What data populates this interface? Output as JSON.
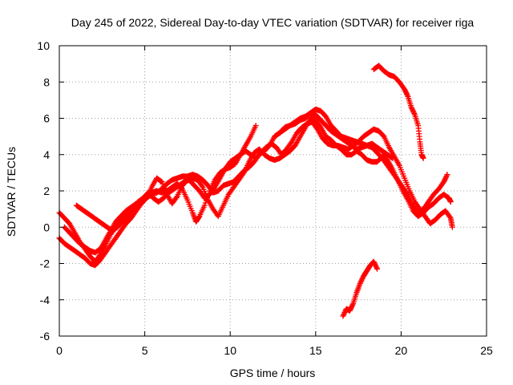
{
  "chart_data": {
    "type": "scatter",
    "title": "Day 245 of 2022, Sidereal Day-to-day VTEC variation (SDTVAR) for receiver riga",
    "xlabel": "GPS time / hours",
    "ylabel": "SDTVAR / TECUs",
    "xlim": [
      0,
      25
    ],
    "ylim": [
      -6,
      10
    ],
    "xticks": [
      "0",
      "5",
      "10",
      "15",
      "20",
      "25"
    ],
    "yticks": [
      "-6",
      "-4",
      "-2",
      "0",
      "2",
      "4",
      "6",
      "8",
      "10"
    ],
    "grid": true,
    "marker": "+",
    "color": "#ff0000",
    "series": [
      {
        "name": "track-1",
        "points": [
          [
            0.0,
            0.8
          ],
          [
            0.3,
            0.5
          ],
          [
            0.6,
            0.2
          ],
          [
            0.9,
            -0.3
          ],
          [
            1.2,
            -0.8
          ],
          [
            1.5,
            -1.2
          ],
          [
            1.8,
            -1.6
          ],
          [
            2.1,
            -1.9
          ],
          [
            2.4,
            -1.5
          ],
          [
            2.7,
            -1.0
          ],
          [
            3.0,
            -0.4
          ],
          [
            3.3,
            0.0
          ],
          [
            3.6,
            0.3
          ],
          [
            3.9,
            0.6
          ],
          [
            4.2,
            0.9
          ],
          [
            4.5,
            1.2
          ],
          [
            4.8,
            1.5
          ],
          [
            5.1,
            1.7
          ],
          [
            5.4,
            1.9
          ],
          [
            5.7,
            2.0
          ],
          [
            6.0,
            1.9
          ],
          [
            6.3,
            2.0
          ],
          [
            6.6,
            2.2
          ],
          [
            6.9,
            2.4
          ],
          [
            7.2,
            2.1
          ],
          [
            7.5,
            1.5
          ],
          [
            7.8,
            0.8
          ],
          [
            8.0,
            0.3
          ],
          [
            8.2,
            0.6
          ],
          [
            8.5,
            1.2
          ],
          [
            8.8,
            2.0
          ],
          [
            9.1,
            2.6
          ],
          [
            9.4,
            3.0
          ],
          [
            9.7,
            3.2
          ],
          [
            10.0,
            3.3
          ],
          [
            10.3,
            3.5
          ],
          [
            10.6,
            4.0
          ],
          [
            10.9,
            4.5
          ],
          [
            11.2,
            5.0
          ],
          [
            11.5,
            5.6
          ]
        ]
      },
      {
        "name": "track-2",
        "points": [
          [
            0.0,
            -0.6
          ],
          [
            0.3,
            -0.9
          ],
          [
            0.6,
            -1.1
          ],
          [
            0.9,
            -1.3
          ],
          [
            1.2,
            -1.5
          ],
          [
            1.5,
            -1.7
          ],
          [
            1.8,
            -2.0
          ],
          [
            2.1,
            -2.1
          ],
          [
            2.4,
            -1.8
          ],
          [
            2.7,
            -1.4
          ],
          [
            3.0,
            -1.0
          ],
          [
            3.3,
            -0.6
          ],
          [
            3.6,
            -0.2
          ],
          [
            3.9,
            0.2
          ],
          [
            4.2,
            0.5
          ],
          [
            4.5,
            0.9
          ],
          [
            4.8,
            1.3
          ],
          [
            5.1,
            1.6
          ],
          [
            5.4,
            1.8
          ],
          [
            5.7,
            1.9
          ],
          [
            6.0,
            2.1
          ],
          [
            6.3,
            2.4
          ],
          [
            6.6,
            2.6
          ],
          [
            6.9,
            2.7
          ],
          [
            7.2,
            2.8
          ],
          [
            7.5,
            2.8
          ],
          [
            7.8,
            2.9
          ],
          [
            8.1,
            2.8
          ],
          [
            8.4,
            2.6
          ],
          [
            8.7,
            2.3
          ],
          [
            9.0,
            1.9
          ],
          [
            9.3,
            2.0
          ],
          [
            9.6,
            2.3
          ],
          [
            9.9,
            2.4
          ],
          [
            10.2,
            2.5
          ],
          [
            10.5,
            2.8
          ],
          [
            10.8,
            3.1
          ],
          [
            11.1,
            3.3
          ],
          [
            11.4,
            3.6
          ],
          [
            11.7,
            4.0
          ],
          [
            12.0,
            4.2
          ],
          [
            12.3,
            4.5
          ],
          [
            12.6,
            5.0
          ],
          [
            12.9,
            5.2
          ],
          [
            13.2,
            5.4
          ],
          [
            13.5,
            5.6
          ],
          [
            13.8,
            5.7
          ],
          [
            14.1,
            5.9
          ],
          [
            14.4,
            6.0
          ],
          [
            14.7,
            6.3
          ],
          [
            15.0,
            6.5
          ],
          [
            15.3,
            6.4
          ],
          [
            15.6,
            6.1
          ],
          [
            15.9,
            5.6
          ],
          [
            16.2,
            5.3
          ],
          [
            16.5,
            5.0
          ],
          [
            16.8,
            4.9
          ],
          [
            17.1,
            4.8
          ],
          [
            17.4,
            4.7
          ],
          [
            17.7,
            4.6
          ],
          [
            18.0,
            4.5
          ],
          [
            18.3,
            4.4
          ],
          [
            18.6,
            4.1
          ],
          [
            18.9,
            3.8
          ],
          [
            19.2,
            3.4
          ],
          [
            19.5,
            3.0
          ],
          [
            19.8,
            2.6
          ],
          [
            20.1,
            2.0
          ],
          [
            20.4,
            1.5
          ],
          [
            20.7,
            0.9
          ],
          [
            21.0,
            0.6
          ],
          [
            21.3,
            0.8
          ],
          [
            21.6,
            1.1
          ],
          [
            21.9,
            1.3
          ],
          [
            22.2,
            1.6
          ],
          [
            22.5,
            1.8
          ],
          [
            22.8,
            1.6
          ],
          [
            22.9,
            1.4
          ]
        ]
      },
      {
        "name": "track-3",
        "points": [
          [
            0.3,
            0.0
          ],
          [
            0.6,
            -0.3
          ],
          [
            0.9,
            -0.6
          ],
          [
            1.2,
            -0.9
          ],
          [
            1.5,
            -1.1
          ],
          [
            1.8,
            -1.3
          ],
          [
            2.1,
            -1.4
          ],
          [
            2.4,
            -1.2
          ],
          [
            2.7,
            -0.7
          ],
          [
            3.0,
            -0.2
          ],
          [
            3.3,
            0.3
          ],
          [
            3.6,
            0.6
          ],
          [
            3.9,
            0.9
          ],
          [
            4.2,
            1.1
          ],
          [
            4.5,
            1.3
          ],
          [
            4.8,
            1.4
          ],
          [
            5.1,
            1.6
          ],
          [
            5.4,
            2.2
          ],
          [
            5.7,
            2.7
          ],
          [
            6.0,
            2.5
          ],
          [
            6.3,
            1.8
          ],
          [
            6.6,
            1.3
          ],
          [
            6.9,
            1.7
          ],
          [
            7.2,
            2.3
          ],
          [
            7.5,
            2.6
          ],
          [
            7.8,
            2.7
          ],
          [
            8.1,
            2.6
          ],
          [
            8.4,
            2.2
          ],
          [
            8.7,
            1.5
          ],
          [
            9.0,
            1.0
          ],
          [
            9.3,
            0.6
          ],
          [
            9.6,
            1.2
          ],
          [
            9.9,
            1.8
          ],
          [
            10.2,
            2.2
          ],
          [
            10.5,
            2.6
          ],
          [
            10.8,
            3.0
          ],
          [
            11.1,
            3.6
          ],
          [
            11.4,
            4.1
          ],
          [
            11.7,
            4.3
          ],
          [
            12.0,
            4.0
          ],
          [
            12.3,
            3.8
          ],
          [
            12.6,
            3.7
          ],
          [
            12.9,
            3.8
          ],
          [
            13.2,
            4.0
          ],
          [
            13.5,
            4.2
          ],
          [
            13.8,
            4.5
          ],
          [
            14.1,
            5.0
          ],
          [
            14.4,
            5.5
          ],
          [
            14.7,
            6.0
          ],
          [
            15.0,
            5.9
          ],
          [
            15.3,
            5.5
          ],
          [
            15.6,
            5.0
          ],
          [
            15.9,
            4.8
          ],
          [
            16.2,
            4.5
          ],
          [
            16.5,
            4.3
          ],
          [
            16.8,
            4.0
          ],
          [
            17.1,
            4.0
          ],
          [
            17.4,
            4.2
          ],
          [
            17.7,
            4.0
          ],
          [
            18.0,
            3.7
          ],
          [
            18.3,
            3.6
          ],
          [
            18.6,
            3.6
          ],
          [
            18.9,
            3.9
          ],
          [
            19.2,
            3.7
          ],
          [
            19.5,
            3.2
          ],
          [
            19.8,
            2.6
          ],
          [
            20.1,
            2.2
          ],
          [
            20.4,
            1.8
          ],
          [
            20.7,
            1.2
          ],
          [
            21.0,
            0.8
          ],
          [
            21.3,
            1.0
          ],
          [
            21.6,
            1.4
          ],
          [
            21.9,
            1.8
          ],
          [
            22.2,
            2.1
          ],
          [
            22.5,
            2.5
          ],
          [
            22.7,
            2.9
          ]
        ]
      },
      {
        "name": "track-4",
        "points": [
          [
            1.0,
            1.2
          ],
          [
            1.3,
            1.0
          ],
          [
            1.6,
            0.8
          ],
          [
            1.9,
            0.6
          ],
          [
            2.2,
            0.4
          ],
          [
            2.5,
            0.2
          ],
          [
            2.8,
            0.0
          ],
          [
            3.1,
            -0.2
          ],
          [
            3.4,
            0.0
          ],
          [
            3.7,
            0.3
          ],
          [
            4.0,
            0.6
          ],
          [
            4.3,
            1.0
          ],
          [
            4.6,
            1.4
          ],
          [
            4.9,
            1.6
          ],
          [
            5.2,
            1.9
          ],
          [
            5.5,
            1.6
          ],
          [
            5.8,
            1.4
          ],
          [
            6.1,
            1.6
          ],
          [
            6.4,
            1.9
          ],
          [
            6.7,
            2.1
          ],
          [
            7.0,
            2.3
          ],
          [
            7.3,
            2.5
          ],
          [
            7.6,
            2.6
          ],
          [
            7.9,
            2.3
          ],
          [
            8.2,
            2.0
          ],
          [
            8.5,
            1.6
          ],
          [
            8.8,
            1.8
          ],
          [
            9.1,
            2.2
          ],
          [
            9.4,
            2.7
          ],
          [
            9.7,
            3.2
          ],
          [
            10.0,
            3.6
          ],
          [
            10.3,
            3.8
          ],
          [
            10.6,
            4.0
          ],
          [
            10.9,
            4.2
          ],
          [
            11.2,
            4.0
          ],
          [
            11.5,
            3.8
          ],
          [
            11.8,
            4.1
          ],
          [
            12.1,
            4.4
          ],
          [
            12.4,
            4.6
          ],
          [
            12.7,
            4.4
          ],
          [
            13.0,
            4.0
          ],
          [
            13.3,
            4.3
          ],
          [
            13.6,
            4.7
          ],
          [
            13.9,
            5.2
          ],
          [
            14.2,
            5.5
          ],
          [
            14.5,
            5.7
          ],
          [
            14.8,
            5.8
          ],
          [
            15.1,
            5.4
          ],
          [
            15.4,
            4.9
          ],
          [
            15.7,
            4.6
          ],
          [
            16.0,
            4.5
          ],
          [
            16.3,
            4.5
          ],
          [
            16.6,
            4.4
          ],
          [
            16.9,
            4.3
          ],
          [
            17.2,
            4.5
          ],
          [
            17.5,
            4.7
          ],
          [
            17.8,
            5.0
          ],
          [
            18.1,
            5.2
          ],
          [
            18.4,
            5.4
          ],
          [
            18.7,
            5.3
          ],
          [
            19.0,
            5.0
          ],
          [
            19.3,
            4.4
          ],
          [
            19.6,
            3.9
          ],
          [
            19.9,
            3.4
          ],
          [
            20.2,
            2.7
          ],
          [
            20.5,
            2.0
          ],
          [
            20.8,
            1.4
          ],
          [
            21.1,
            1.0
          ],
          [
            21.4,
            0.6
          ],
          [
            21.7,
            0.2
          ],
          [
            22.0,
            0.4
          ],
          [
            22.3,
            0.7
          ],
          [
            22.6,
            0.9
          ],
          [
            22.9,
            0.5
          ],
          [
            23.0,
            0.0
          ]
        ]
      },
      {
        "name": "track-5",
        "points": [
          [
            12.6,
            5.0
          ],
          [
            12.9,
            5.2
          ],
          [
            13.2,
            5.5
          ],
          [
            13.5,
            5.6
          ],
          [
            13.8,
            5.8
          ],
          [
            14.1,
            6.0
          ],
          [
            14.4,
            6.1
          ],
          [
            14.7,
            6.3
          ],
          [
            15.0,
            6.2
          ],
          [
            15.3,
            5.9
          ],
          [
            15.6,
            5.6
          ],
          [
            15.9,
            5.3
          ],
          [
            16.2,
            5.1
          ],
          [
            16.5,
            4.9
          ],
          [
            16.8,
            4.7
          ],
          [
            17.1,
            4.5
          ],
          [
            17.4,
            4.3
          ],
          [
            17.7,
            4.4
          ],
          [
            18.0,
            4.5
          ],
          [
            18.3,
            4.6
          ],
          [
            18.6,
            4.4
          ],
          [
            18.9,
            4.2
          ],
          [
            19.2,
            4.0
          ],
          [
            19.5,
            3.8
          ]
        ]
      },
      {
        "name": "track-6",
        "points": [
          [
            18.4,
            8.7
          ],
          [
            18.7,
            8.9
          ],
          [
            19.0,
            8.6
          ],
          [
            19.3,
            8.4
          ],
          [
            19.6,
            8.3
          ],
          [
            19.9,
            8.0
          ],
          [
            20.2,
            7.6
          ],
          [
            20.4,
            7.2
          ],
          [
            20.6,
            6.6
          ],
          [
            20.8,
            6.2
          ],
          [
            21.0,
            5.6
          ],
          [
            21.1,
            4.7
          ],
          [
            21.2,
            4.0
          ],
          [
            21.3,
            3.8
          ]
        ]
      },
      {
        "name": "track-7",
        "points": [
          [
            16.6,
            -4.9
          ],
          [
            16.8,
            -4.5
          ],
          [
            17.0,
            -4.6
          ],
          [
            17.2,
            -4.2
          ],
          [
            17.4,
            -3.6
          ],
          [
            17.6,
            -3.1
          ],
          [
            17.8,
            -2.7
          ],
          [
            18.0,
            -2.4
          ],
          [
            18.2,
            -2.1
          ],
          [
            18.4,
            -1.9
          ],
          [
            18.6,
            -2.3
          ]
        ]
      }
    ]
  }
}
